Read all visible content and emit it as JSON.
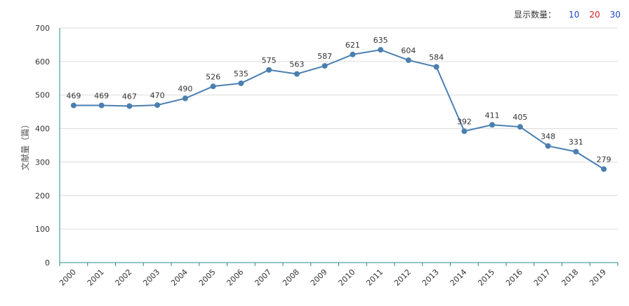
{
  "controls": {
    "label": "显示数量：",
    "options": [
      "10",
      "20",
      "30"
    ],
    "colors": [
      "#1f46c8",
      "#d61b1b",
      "#1f46c8"
    ]
  },
  "chart_data": {
    "type": "line",
    "x": [
      "2000",
      "2001",
      "2002",
      "2003",
      "2004",
      "2005",
      "2006",
      "2007",
      "2008",
      "2009",
      "2010",
      "2011",
      "2012",
      "2013",
      "2014",
      "2015",
      "2016",
      "2017",
      "2018",
      "2019"
    ],
    "values": [
      469,
      469,
      467,
      470,
      490,
      526,
      535,
      575,
      563,
      587,
      621,
      635,
      604,
      584,
      392,
      411,
      405,
      348,
      331,
      279
    ],
    "ylabel": "文献量（篇）",
    "ylim": [
      0,
      700
    ],
    "yticks": [
      0,
      100,
      200,
      300,
      400,
      500,
      600,
      700
    ],
    "grid": true,
    "line_color": "#4a7fb0"
  }
}
